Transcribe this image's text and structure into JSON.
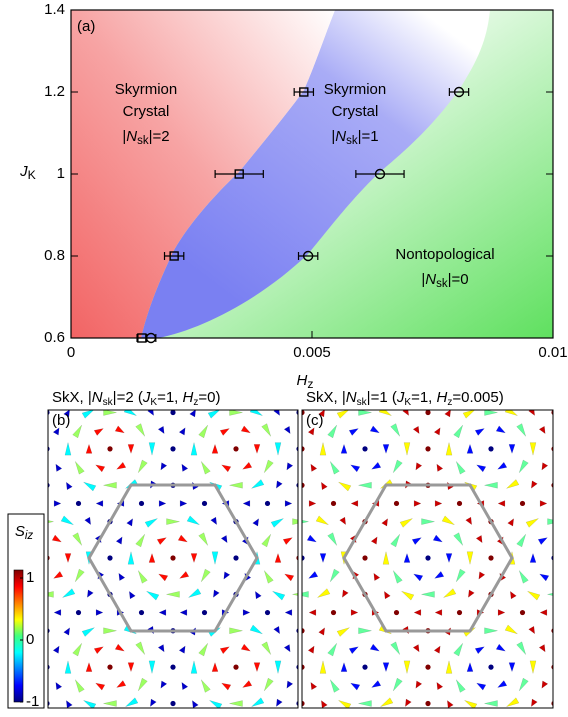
{
  "chart_data": {
    "type": "scatter",
    "panel_label": "(a)",
    "xlim": [
      0,
      0.01
    ],
    "ylim": [
      0.6,
      1.4
    ],
    "xticks": [
      0,
      0.005,
      0.01
    ],
    "yticks": [
      0.6,
      0.8,
      1,
      1.2,
      1.4
    ],
    "x_label": [
      "H",
      "z"
    ],
    "y_label": [
      "J",
      "K"
    ],
    "series": [
      {
        "marker": "square",
        "color": "#000000",
        "x": [
          0.00147,
          0.00214,
          0.00349,
          0.00483
        ],
        "values": [
          0.6,
          0.8,
          1,
          1.2
        ],
        "xerr": [
          0.0001,
          0.0002,
          0.0005,
          0.0002
        ]
      },
      {
        "marker": "circle",
        "color": "#000000",
        "x": [
          0.00166,
          0.00492,
          0.00641,
          0.00805
        ],
        "values": [
          0.6,
          0.8,
          1,
          1.2
        ],
        "xerr": [
          0.0001,
          0.0002,
          0.0005,
          0.0002
        ]
      }
    ],
    "phases": [
      {
        "lines": [
          "Skyrmion",
          "Crystal"
        ],
        "count": [
          "|",
          "N",
          "sk",
          "|=2"
        ]
      },
      {
        "lines": [
          "Skyrmion",
          "Crystal"
        ],
        "count": [
          "|",
          "N",
          "sk",
          "|=1"
        ]
      },
      {
        "lines": [
          "Nontopological"
        ],
        "count": [
          "|",
          "N",
          "sk",
          "|=0"
        ]
      }
    ]
  },
  "panels": [
    {
      "label": "(b)",
      "title": [
        "SkX, |",
        "N",
        "sk",
        "|=2 (",
        "J",
        "K",
        "=1, ",
        "H",
        "z",
        "=0)"
      ]
    },
    {
      "label": "(c)",
      "title": [
        "SkX, |",
        "N",
        "sk",
        "|=1 (",
        "J",
        "K",
        "=1, ",
        "H",
        "z",
        "=0.005)"
      ]
    }
  ],
  "colorbar": {
    "title": [
      "S",
      "iz"
    ],
    "lim": [
      -1,
      1
    ],
    "ticks": [
      1,
      0,
      -1
    ]
  }
}
